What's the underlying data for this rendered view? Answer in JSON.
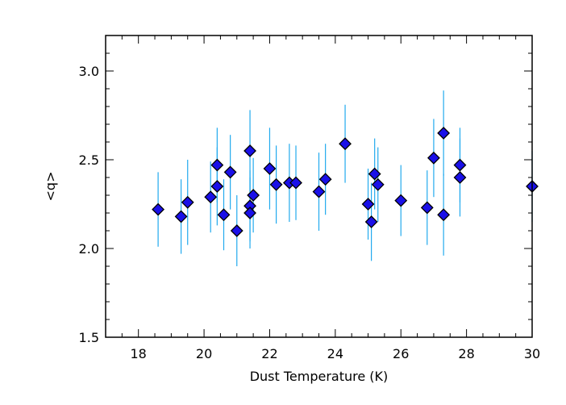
{
  "chart_data": {
    "type": "scatter",
    "xlabel": "Dust Temperature (K)",
    "ylabel": "<q>",
    "xlim": [
      17,
      30
    ],
    "ylim": [
      1.5,
      3.2
    ],
    "xticks": [
      18,
      20,
      22,
      24,
      26,
      28,
      30
    ],
    "yticks": [
      1.5,
      2.0,
      2.5,
      3.0
    ],
    "xtick_labels": [
      "18",
      "20",
      "22",
      "24",
      "26",
      "28",
      "30"
    ],
    "ytick_labels": [
      "1.5",
      "2.0",
      "2.5",
      "3.0"
    ],
    "grid": false,
    "marker": "diamond",
    "colors": {
      "marker": "#1a10e8",
      "marker_edge": "#000000",
      "error_bar": "#22aaee",
      "axes": "#000000"
    },
    "points": [
      {
        "x": 18.6,
        "y": 2.22,
        "err": 0.21
      },
      {
        "x": 19.3,
        "y": 2.18,
        "err": 0.21
      },
      {
        "x": 19.5,
        "y": 2.26,
        "err": 0.24
      },
      {
        "x": 20.2,
        "y": 2.29,
        "err": 0.2
      },
      {
        "x": 20.4,
        "y": 2.35,
        "err": 0.22
      },
      {
        "x": 20.4,
        "y": 2.47,
        "err": 0.21
      },
      {
        "x": 20.6,
        "y": 2.19,
        "err": 0.2
      },
      {
        "x": 20.8,
        "y": 2.43,
        "err": 0.21
      },
      {
        "x": 21.0,
        "y": 2.1,
        "err": 0.2
      },
      {
        "x": 21.4,
        "y": 2.55,
        "err": 0.23
      },
      {
        "x": 21.4,
        "y": 2.24,
        "err": 0.2
      },
      {
        "x": 21.4,
        "y": 2.2,
        "err": 0.2
      },
      {
        "x": 21.5,
        "y": 2.3,
        "err": 0.21
      },
      {
        "x": 22.0,
        "y": 2.45,
        "err": 0.23
      },
      {
        "x": 22.2,
        "y": 2.36,
        "err": 0.22
      },
      {
        "x": 22.6,
        "y": 2.37,
        "err": 0.22
      },
      {
        "x": 22.8,
        "y": 2.37,
        "err": 0.21
      },
      {
        "x": 23.5,
        "y": 2.32,
        "err": 0.22
      },
      {
        "x": 23.7,
        "y": 2.39,
        "err": 0.2
      },
      {
        "x": 24.3,
        "y": 2.59,
        "err": 0.22
      },
      {
        "x": 25.0,
        "y": 2.25,
        "err": 0.2
      },
      {
        "x": 25.1,
        "y": 2.15,
        "err": 0.22
      },
      {
        "x": 25.2,
        "y": 2.42,
        "err": 0.2
      },
      {
        "x": 25.3,
        "y": 2.36,
        "err": 0.21
      },
      {
        "x": 26.0,
        "y": 2.27,
        "err": 0.2
      },
      {
        "x": 26.8,
        "y": 2.23,
        "err": 0.21
      },
      {
        "x": 27.0,
        "y": 2.51,
        "err": 0.22
      },
      {
        "x": 27.3,
        "y": 2.65,
        "err": 0.24
      },
      {
        "x": 27.3,
        "y": 2.19,
        "err": 0.23
      },
      {
        "x": 27.8,
        "y": 2.47,
        "err": 0.21
      },
      {
        "x": 27.8,
        "y": 2.4,
        "err": 0.22
      },
      {
        "x": 30.0,
        "y": 2.35,
        "err": 0.2
      }
    ]
  }
}
